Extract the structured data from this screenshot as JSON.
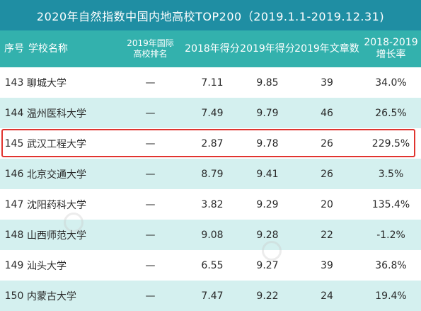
{
  "title": "2020年自然指数中国内地高校TOP200（2019.1.1-2019.12.31)",
  "headers": {
    "rank": "序号",
    "name": "学校名称",
    "intl_rank_line1": "2019年国际",
    "intl_rank_line2": "高校排名",
    "score2018": "2018年得分",
    "score2019": "2019年得分",
    "articles": "2019年文章数",
    "growth_line1": "2018-2019",
    "growth_line2": "增长率"
  },
  "rows": [
    {
      "rank": "143",
      "name": "聊城大学",
      "intl": "—",
      "s2018": "7.11",
      "s2019": "9.85",
      "articles": "39",
      "growth": "34.0%"
    },
    {
      "rank": "144",
      "name": "温州医科大学",
      "intl": "—",
      "s2018": "7.49",
      "s2019": "9.79",
      "articles": "46",
      "growth": "26.5%"
    },
    {
      "rank": "145",
      "name": "武汉工程大学",
      "intl": "—",
      "s2018": "2.87",
      "s2019": "9.78",
      "articles": "26",
      "growth": "229.5%"
    },
    {
      "rank": "146",
      "name": "北京交通大学",
      "intl": "—",
      "s2018": "8.79",
      "s2019": "9.41",
      "articles": "26",
      "growth": "3.5%"
    },
    {
      "rank": "147",
      "name": "沈阳药科大学",
      "intl": "—",
      "s2018": "3.82",
      "s2019": "9.29",
      "articles": "20",
      "growth": "135.4%"
    },
    {
      "rank": "148",
      "name": "山西师范大学",
      "intl": "—",
      "s2018": "9.08",
      "s2019": "9.28",
      "articles": "22",
      "growth": "-1.2%"
    },
    {
      "rank": "149",
      "name": "汕头大学",
      "intl": "—",
      "s2018": "6.55",
      "s2019": "9.27",
      "articles": "39",
      "growth": "36.8%"
    },
    {
      "rank": "150",
      "name": "内蒙古大学",
      "intl": "—",
      "s2018": "7.47",
      "s2019": "9.22",
      "articles": "24",
      "growth": "19.4%"
    }
  ],
  "highlight_rank": "145",
  "colors": {
    "title_bg": "#1f8ea3",
    "header_bg": "#33b1ad",
    "stripe": "#d4f0ef",
    "highlight": "#e0342f"
  }
}
